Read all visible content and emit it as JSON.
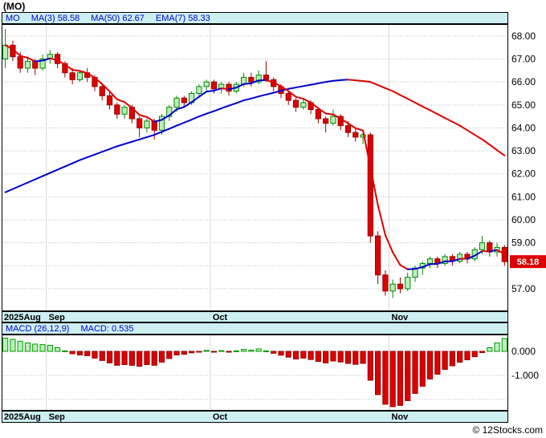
{
  "title": "(MO)",
  "legend": {
    "symbol": "MO",
    "ma3": "MA(3) 58.58",
    "ma50": "MA(50) 62.67",
    "ema7": "EMA(7) 58.33"
  },
  "macd_legend": {
    "params": "MACD (26,12,9)",
    "value": "MACD: 0.535"
  },
  "copyright": "© 12Stocks.com",
  "colors": {
    "strip_bg": "#cdeff2",
    "legend_text": "#0000cc",
    "up_line": "#0000cc",
    "down_line": "#dd0000",
    "candle_up_fill": "#b9efb9",
    "candle_up_stroke": "#008800",
    "candle_down_fill": "#e00000",
    "candle_down_stroke": "#990000",
    "bar_up_fill": "#b9efb9",
    "bar_up_stroke": "#009900",
    "bar_down_fill": "#dd0000",
    "bar_down_stroke": "#990000",
    "grid": "#bbbbbb",
    "vgrid": "#d8d8d8",
    "badge_bg": "#dd0000",
    "badge_fg": "#ffffff"
  },
  "chart_data": [
    {
      "type": "candlestick",
      "title": "(MO)",
      "ylim": [
        56.02,
        68.52
      ],
      "y_grid": [
        68,
        67,
        66,
        65,
        64,
        63,
        62,
        61,
        60,
        59,
        58,
        57
      ],
      "y_ticks": [
        {
          "v": 68,
          "label": "68.00"
        },
        {
          "v": 67,
          "label": "67.00"
        },
        {
          "v": 66,
          "label": "66.00"
        },
        {
          "v": 65,
          "label": "65.00"
        },
        {
          "v": 64,
          "label": "64.00"
        },
        {
          "v": 63,
          "label": "63.00"
        },
        {
          "v": 62,
          "label": "62.00"
        },
        {
          "v": 61,
          "label": "61.00"
        },
        {
          "v": 60,
          "label": "60.00"
        },
        {
          "v": 59,
          "label": "59.00"
        },
        {
          "v": 57,
          "label": "57.00"
        }
      ],
      "last_price": {
        "value": 58.18,
        "label": "58.18"
      },
      "months": [
        {
          "label": "2025Aug",
          "index": 0
        },
        {
          "label": "Sep",
          "index": 6
        },
        {
          "label": "Oct",
          "index": 28
        },
        {
          "label": "Nov",
          "index": 52
        }
      ],
      "ema7_alpha": 0.35,
      "candles": [
        [
          67.0,
          68.3,
          66.6,
          67.6
        ],
        [
          67.6,
          67.8,
          66.9,
          67.1
        ],
        [
          67.1,
          67.3,
          66.4,
          66.6
        ],
        [
          66.6,
          67.1,
          66.4,
          66.9
        ],
        [
          66.9,
          67.0,
          66.3,
          66.6
        ],
        [
          66.6,
          67.2,
          66.5,
          67.0
        ],
        [
          67.0,
          67.4,
          66.8,
          67.2
        ],
        [
          67.2,
          67.3,
          66.6,
          66.8
        ],
        [
          66.8,
          66.9,
          66.2,
          66.4
        ],
        [
          66.4,
          66.6,
          65.9,
          66.1
        ],
        [
          66.1,
          66.5,
          66.0,
          66.4
        ],
        [
          66.4,
          66.6,
          66.0,
          66.2
        ],
        [
          66.2,
          66.3,
          65.6,
          65.8
        ],
        [
          65.8,
          65.9,
          65.2,
          65.4
        ],
        [
          65.4,
          65.6,
          64.8,
          65.0
        ],
        [
          65.0,
          65.1,
          64.4,
          64.6
        ],
        [
          64.6,
          65.0,
          64.4,
          64.9
        ],
        [
          64.9,
          65.0,
          64.2,
          64.4
        ],
        [
          64.4,
          64.5,
          63.6,
          64.0
        ],
        [
          64.0,
          64.4,
          63.8,
          64.3
        ],
        [
          64.3,
          64.4,
          63.5,
          63.9
        ],
        [
          63.9,
          64.6,
          63.7,
          64.5
        ],
        [
          64.5,
          65.0,
          64.3,
          64.9
        ],
        [
          64.9,
          65.4,
          64.7,
          65.3
        ],
        [
          65.3,
          65.4,
          64.9,
          65.1
        ],
        [
          65.1,
          65.6,
          65.0,
          65.5
        ],
        [
          65.5,
          65.9,
          65.3,
          65.8
        ],
        [
          65.8,
          66.1,
          65.6,
          66.0
        ],
        [
          66.0,
          66.1,
          65.5,
          65.7
        ],
        [
          65.7,
          66.0,
          65.5,
          65.9
        ],
        [
          65.9,
          66.0,
          65.4,
          65.6
        ],
        [
          65.6,
          66.0,
          65.5,
          65.9
        ],
        [
          65.9,
          66.4,
          65.8,
          66.2
        ],
        [
          66.2,
          66.4,
          65.8,
          66.0
        ],
        [
          66.0,
          66.5,
          65.9,
          66.3
        ],
        [
          66.3,
          66.9,
          66.0,
          66.1
        ],
        [
          66.1,
          66.2,
          65.6,
          65.8
        ],
        [
          65.8,
          65.9,
          65.3,
          65.5
        ],
        [
          65.5,
          65.6,
          65.0,
          65.2
        ],
        [
          65.2,
          65.3,
          64.7,
          64.9
        ],
        [
          64.9,
          65.3,
          64.8,
          65.1
        ],
        [
          65.1,
          65.2,
          64.6,
          64.8
        ],
        [
          64.8,
          64.9,
          64.2,
          64.4
        ],
        [
          64.4,
          64.5,
          63.8,
          64.2
        ],
        [
          64.2,
          64.8,
          64.1,
          64.5
        ],
        [
          64.5,
          64.6,
          63.9,
          64.1
        ],
        [
          64.1,
          64.3,
          63.6,
          63.8
        ],
        [
          63.8,
          64.0,
          63.4,
          63.6
        ],
        [
          63.6,
          63.9,
          63.3,
          63.7
        ],
        [
          63.7,
          63.8,
          59.0,
          59.3
        ],
        [
          59.3,
          59.5,
          57.2,
          57.6
        ],
        [
          57.6,
          57.8,
          56.7,
          56.9
        ],
        [
          56.9,
          57.4,
          56.6,
          57.2
        ],
        [
          57.2,
          57.5,
          56.8,
          57.0
        ],
        [
          57.0,
          57.7,
          56.9,
          57.5
        ],
        [
          57.5,
          58.0,
          57.3,
          57.9
        ],
        [
          57.9,
          58.2,
          57.6,
          58.1
        ],
        [
          58.1,
          58.4,
          57.9,
          58.3
        ],
        [
          58.3,
          58.4,
          57.9,
          58.1
        ],
        [
          58.1,
          58.5,
          58.0,
          58.4
        ],
        [
          58.4,
          58.5,
          58.0,
          58.2
        ],
        [
          58.2,
          58.6,
          58.1,
          58.5
        ],
        [
          58.5,
          58.6,
          58.1,
          58.3
        ],
        [
          58.3,
          58.8,
          58.2,
          58.7
        ],
        [
          58.7,
          59.3,
          58.5,
          59.0
        ],
        [
          59.0,
          59.1,
          58.4,
          58.6
        ],
        [
          58.6,
          59.0,
          58.4,
          58.8
        ],
        [
          58.8,
          58.9,
          58.0,
          58.18
        ]
      ],
      "ma50": [
        61.2,
        61.34,
        61.48,
        61.62,
        61.76,
        61.9,
        62.04,
        62.18,
        62.32,
        62.46,
        62.6,
        62.72,
        62.84,
        62.96,
        63.08,
        63.2,
        63.3,
        63.4,
        63.5,
        63.6,
        63.7,
        63.83,
        63.96,
        64.1,
        64.23,
        64.36,
        64.5,
        64.62,
        64.73,
        64.85,
        64.97,
        65.08,
        65.2,
        65.28,
        65.37,
        65.45,
        65.53,
        65.62,
        65.7,
        65.76,
        65.82,
        65.88,
        65.94,
        66.0,
        66.05,
        66.08,
        66.1,
        66.07,
        66.04,
        66.0,
        65.87,
        65.73,
        65.6,
        65.43,
        65.27,
        65.1,
        64.93,
        64.77,
        64.6,
        64.43,
        64.27,
        64.1,
        63.9,
        63.7,
        63.5,
        63.27,
        63.03,
        62.8
      ]
    },
    {
      "type": "bar",
      "name": "MACD histogram (26,12,9)",
      "last_value": 0.535,
      "ylim": [
        -2.47,
        0.7
      ],
      "y_grid": [
        0,
        -1,
        -2
      ],
      "y_ticks": [
        {
          "v": 0,
          "label": "0.000"
        },
        {
          "v": -1,
          "label": "-1.000"
        }
      ],
      "values": [
        0.55,
        0.5,
        0.42,
        0.35,
        0.3,
        0.28,
        0.25,
        0.15,
        0.02,
        -0.1,
        -0.15,
        -0.18,
        -0.28,
        -0.38,
        -0.48,
        -0.58,
        -0.55,
        -0.58,
        -0.62,
        -0.55,
        -0.58,
        -0.45,
        -0.3,
        -0.15,
        -0.12,
        -0.06,
        -0.02,
        0.04,
        -0.02,
        0.03,
        -0.03,
        0.02,
        0.08,
        0.05,
        0.1,
        0.02,
        -0.08,
        -0.16,
        -0.24,
        -0.32,
        -0.28,
        -0.34,
        -0.42,
        -0.48,
        -0.4,
        -0.44,
        -0.5,
        -0.54,
        -0.5,
        -1.2,
        -1.8,
        -2.2,
        -2.3,
        -2.25,
        -2.05,
        -1.75,
        -1.45,
        -1.15,
        -0.95,
        -0.75,
        -0.6,
        -0.45,
        -0.35,
        -0.22,
        -0.05,
        0.15,
        0.35,
        0.535
      ]
    }
  ]
}
